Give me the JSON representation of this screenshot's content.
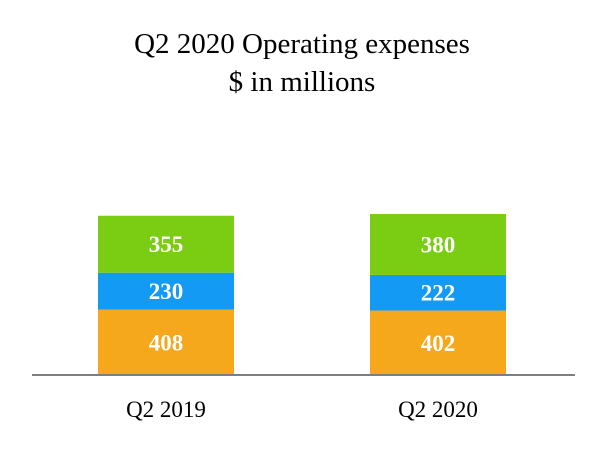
{
  "chart_data": {
    "type": "bar",
    "stacked": true,
    "title": "Q2 2020 Operating expenses",
    "subtitle": "$ in millions",
    "categories": [
      "Q2 2019",
      "Q2 2020"
    ],
    "series": [
      {
        "name": "Bottom segment",
        "color": "#F6A81C",
        "values": [
          408,
          402
        ]
      },
      {
        "name": "Middle segment",
        "color": "#139AF5",
        "values": [
          230,
          222
        ]
      },
      {
        "name": "Top segment",
        "color": "#7ACD12",
        "values": [
          355,
          380
        ]
      }
    ],
    "xlabel": "",
    "ylabel": "",
    "ylim": [
      0,
      1004
    ],
    "legend": "none",
    "grid": false,
    "axis_color": "#7F7F7F"
  }
}
